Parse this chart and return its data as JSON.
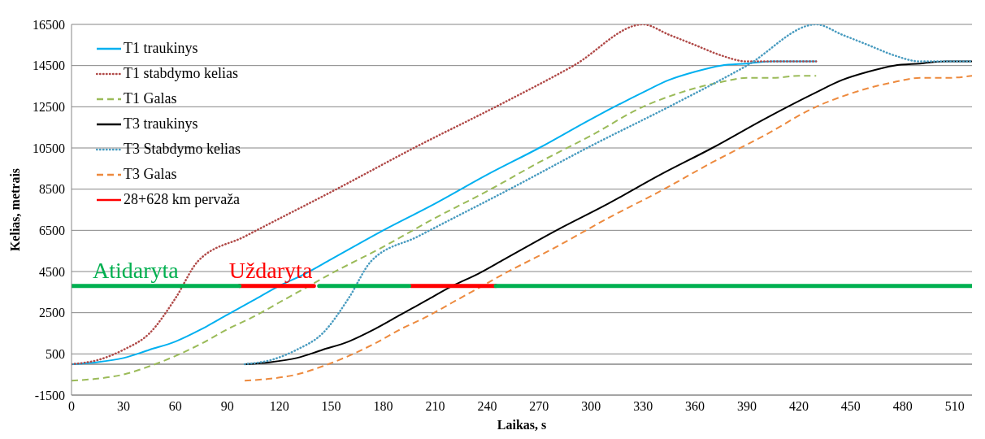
{
  "chart_data": {
    "type": "line",
    "xlabel": "Laikas, s",
    "ylabel": "Kelias, metrais",
    "xlim": [
      0,
      520
    ],
    "xticks": [
      0,
      30,
      60,
      90,
      120,
      150,
      180,
      210,
      240,
      270,
      300,
      330,
      360,
      390,
      420,
      450,
      480,
      510
    ],
    "ylim": [
      -1500,
      16500
    ],
    "yticks": [
      -1500,
      500,
      2500,
      4500,
      6500,
      8500,
      10500,
      12500,
      14500,
      16500
    ],
    "grid": "y",
    "legend": "top left",
    "marker": "none",
    "ref_lines": [
      {
        "axis": "y",
        "value": 0,
        "color": "#868686"
      }
    ],
    "annotations": [
      {
        "text": "Atidaryta",
        "x": 37,
        "y": 3800
      },
      {
        "text": "Uždaryta",
        "x": 115,
        "y": 3800
      }
    ],
    "series": [
      {
        "name": "T1 traukinys",
        "color": "#00b0f0",
        "line_style": "solid",
        "x": [
          0,
          15,
          30,
          45,
          60,
          75,
          90,
          105,
          120,
          135,
          150,
          180,
          210,
          240,
          270,
          300,
          330,
          345,
          360,
          375,
          390,
          405,
          420,
          430
        ],
        "values": [
          0,
          100,
          300,
          700,
          1100,
          1700,
          2400,
          3100,
          3800,
          4400,
          5100,
          6500,
          7800,
          9200,
          10500,
          11900,
          13200,
          13800,
          14200,
          14500,
          14600,
          14700,
          14700,
          14700
        ]
      },
      {
        "name": "T1 stabdymo kelias",
        "color": "#b04a48",
        "line_style": "dotted",
        "x": [
          0,
          15,
          30,
          45,
          60,
          73,
          100,
          153,
          200,
          245,
          290,
          330,
          345,
          360,
          375,
          390,
          410,
          430
        ],
        "values": [
          0,
          200,
          700,
          1500,
          3200,
          5000,
          6200,
          8500,
          10600,
          12500,
          14500,
          16500,
          16000,
          15500,
          15000,
          14700,
          14700,
          14700
        ]
      },
      {
        "name": "T1 Galas",
        "color": "#9bbb59",
        "line_style": "dashed",
        "x": [
          0,
          15,
          30,
          45,
          60,
          75,
          90,
          105,
          120,
          135,
          150,
          180,
          210,
          240,
          270,
          300,
          330,
          345,
          360,
          375,
          390,
          405,
          420,
          430
        ],
        "values": [
          -800,
          -700,
          -500,
          -100,
          400,
          1000,
          1700,
          2300,
          3000,
          3700,
          4400,
          5700,
          7100,
          8400,
          9800,
          11100,
          12500,
          13000,
          13400,
          13700,
          13900,
          13900,
          14000,
          14000
        ]
      },
      {
        "name": "T3 traukinys",
        "color": "#000000",
        "line_style": "solid",
        "x": [
          100,
          115,
          130,
          145,
          160,
          175,
          190,
          205,
          220,
          235,
          250,
          280,
          310,
          340,
          370,
          400,
          430,
          445,
          460,
          475,
          490,
          505,
          520
        ],
        "values": [
          0,
          100,
          300,
          700,
          1100,
          1700,
          2400,
          3100,
          3800,
          4400,
          5100,
          6500,
          7800,
          9200,
          10500,
          11900,
          13200,
          13800,
          14200,
          14500,
          14600,
          14700,
          14700
        ]
      },
      {
        "name": "T3 Stabdymo kelias",
        "color": "#4a9cc0",
        "line_style": "dotted",
        "x": [
          100,
          115,
          130,
          145,
          160,
          173,
          200,
          253,
          300,
          345,
          390,
          430,
          445,
          460,
          475,
          490,
          510,
          520
        ],
        "values": [
          0,
          200,
          700,
          1500,
          3200,
          5000,
          6200,
          8500,
          10600,
          12500,
          14500,
          16500,
          16000,
          15500,
          15000,
          14700,
          14700,
          14700
        ]
      },
      {
        "name": "T3 Galas",
        "color": "#ed8a3e",
        "line_style": "dashed",
        "x": [
          100,
          115,
          130,
          145,
          160,
          175,
          190,
          205,
          220,
          235,
          250,
          280,
          310,
          340,
          370,
          400,
          430,
          445,
          460,
          475,
          490,
          505,
          520
        ],
        "values": [
          -800,
          -700,
          -500,
          -100,
          400,
          1000,
          1700,
          2300,
          3000,
          3700,
          4400,
          5700,
          7100,
          8400,
          9800,
          11100,
          12500,
          13000,
          13400,
          13700,
          13900,
          13900,
          14000
        ]
      },
      {
        "name": "28+628 km pervaža",
        "color": "#ff0000",
        "line_style": "solid",
        "x": [
          97,
          140,
          170,
          196,
          245
        ],
        "values": [
          3800,
          3800,
          null,
          3800,
          3800
        ]
      },
      {
        "color": "#00b050",
        "line_style": "solid",
        "x": [
          0,
          97,
          120,
          143,
          195,
          220,
          245,
          520
        ],
        "values": [
          3800,
          3800,
          null,
          3800,
          3800,
          null,
          3800,
          3800
        ]
      }
    ]
  }
}
